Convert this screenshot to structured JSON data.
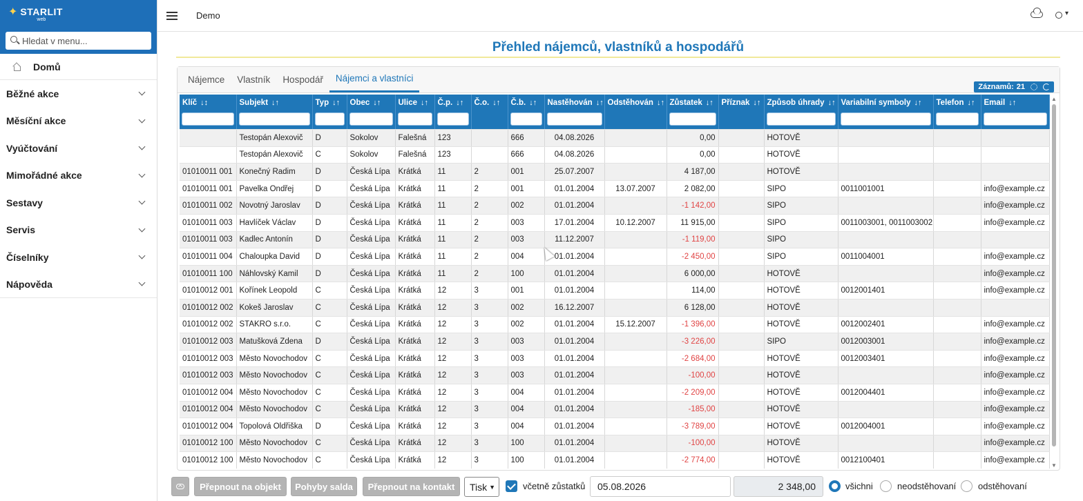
{
  "brand": {
    "name": "STARLIT",
    "sub": "web"
  },
  "sidebar": {
    "search_placeholder": "Hledat v menu...",
    "home": "Domů",
    "items": [
      "Běžné akce",
      "Měsíční akce",
      "Vyúčtování",
      "Mimořádné akce",
      "Sestavy",
      "Servis",
      "Číselníky",
      "Nápověda"
    ]
  },
  "topbar": {
    "company": "Demo"
  },
  "page": {
    "title": "Přehled nájemců, vlastníků a hospodářů"
  },
  "tabs": [
    "Nájemce",
    "Vlastník",
    "Hospodář",
    "Nájemci a vlastníci"
  ],
  "records": {
    "label": "Záznamů:",
    "count": "21"
  },
  "table": {
    "columns": [
      "Klíč",
      "Subjekt",
      "Typ",
      "Obec",
      "Ulice",
      "Č.p.",
      "Č.o.",
      "Č.b.",
      "Nastěhován",
      "Odstěhován",
      "Zůstatek",
      "Příznak",
      "Způsob úhrady",
      "Variabilní symboly",
      "Telefon",
      "Email"
    ],
    "rows": [
      [
        "",
        "Testopán Alexovič",
        "D",
        "Sokolov",
        "Falešná",
        "123",
        "",
        "666",
        "04.08.2026",
        "",
        "0,00",
        "",
        "HOTOVĚ",
        "",
        "",
        ""
      ],
      [
        "",
        "Testopán Alexovič",
        "C",
        "Sokolov",
        "Falešná",
        "123",
        "",
        "666",
        "04.08.2026",
        "",
        "0,00",
        "",
        "HOTOVĚ",
        "",
        "",
        ""
      ],
      [
        "01010011 001",
        "Konečný Radim",
        "D",
        "Česká Lípa",
        "Krátká",
        "11",
        "2",
        "001",
        "25.07.2007",
        "",
        "4 187,00",
        "",
        "HOTOVĚ",
        "",
        "",
        ""
      ],
      [
        "01010011 001",
        "Pavelka Ondřej",
        "D",
        "Česká Lípa",
        "Krátká",
        "11",
        "2",
        "001",
        "01.01.2004",
        "13.07.2007",
        "2 082,00",
        "",
        "SIPO",
        "0011001001",
        "",
        "info@example.cz"
      ],
      [
        "01010011 002",
        "Novotný Jaroslav",
        "D",
        "Česká Lípa",
        "Krátká",
        "11",
        "2",
        "002",
        "01.01.2004",
        "",
        "-1 142,00",
        "",
        "SIPO",
        "",
        "",
        "info@example.cz"
      ],
      [
        "01010011 003",
        "Havlíček Václav",
        "D",
        "Česká Lípa",
        "Krátká",
        "11",
        "2",
        "003",
        "17.01.2004",
        "10.12.2007",
        "11 915,00",
        "",
        "SIPO",
        "0011003001, 0011003002",
        "",
        "info@example.cz"
      ],
      [
        "01010011 003",
        "Kadlec Antonín",
        "D",
        "Česká Lípa",
        "Krátká",
        "11",
        "2",
        "003",
        "11.12.2007",
        "",
        "-1 119,00",
        "",
        "SIPO",
        "",
        "",
        ""
      ],
      [
        "01010011 004",
        "Chaloupka David",
        "D",
        "Česká Lípa",
        "Krátká",
        "11",
        "2",
        "004",
        "01.01.2004",
        "",
        "-2 450,00",
        "",
        "SIPO",
        "0011004001",
        "",
        "info@example.cz"
      ],
      [
        "01010011 100",
        "Náhlovský Kamil",
        "D",
        "Česká Lípa",
        "Krátká",
        "11",
        "2",
        "100",
        "01.01.2004",
        "",
        "6 000,00",
        "",
        "HOTOVĚ",
        "",
        "",
        "info@example.cz"
      ],
      [
        "01010012 001",
        "Kořínek Leopold",
        "C",
        "Česká Lípa",
        "Krátká",
        "12",
        "3",
        "001",
        "01.01.2004",
        "",
        "114,00",
        "",
        "HOTOVĚ",
        "0012001401",
        "",
        "info@example.cz"
      ],
      [
        "01010012 002",
        "Kokeš Jaroslav",
        "C",
        "Česká Lípa",
        "Krátká",
        "12",
        "3",
        "002",
        "16.12.2007",
        "",
        "6 128,00",
        "",
        "HOTOVĚ",
        "",
        "",
        ""
      ],
      [
        "01010012 002",
        "STAKRO s.r.o.",
        "C",
        "Česká Lípa",
        "Krátká",
        "12",
        "3",
        "002",
        "01.01.2004",
        "15.12.2007",
        "-1 396,00",
        "",
        "HOTOVĚ",
        "0012002401",
        "",
        "info@example.cz"
      ],
      [
        "01010012 003",
        "Matušková Zdena",
        "D",
        "Česká Lípa",
        "Krátká",
        "12",
        "3",
        "003",
        "01.01.2004",
        "",
        "-3 226,00",
        "",
        "SIPO",
        "0012003001",
        "",
        "info@example.cz"
      ],
      [
        "01010012 003",
        "Město Novochodov",
        "C",
        "Česká Lípa",
        "Krátká",
        "12",
        "3",
        "003",
        "01.01.2004",
        "",
        "-2 684,00",
        "",
        "HOTOVĚ",
        "0012003401",
        "",
        "info@example.cz"
      ],
      [
        "01010012 003",
        "Město Novochodov",
        "C",
        "Česká Lípa",
        "Krátká",
        "12",
        "3",
        "003",
        "01.01.2004",
        "",
        "-100,00",
        "",
        "HOTOVĚ",
        "",
        "",
        "info@example.cz"
      ],
      [
        "01010012 004",
        "Město Novochodov",
        "C",
        "Česká Lípa",
        "Krátká",
        "12",
        "3",
        "004",
        "01.01.2004",
        "",
        "-2 209,00",
        "",
        "HOTOVĚ",
        "0012004401",
        "",
        "info@example.cz"
      ],
      [
        "01010012 004",
        "Město Novochodov",
        "C",
        "Česká Lípa",
        "Krátká",
        "12",
        "3",
        "004",
        "01.01.2004",
        "",
        "-185,00",
        "",
        "HOTOVĚ",
        "",
        "",
        "info@example.cz"
      ],
      [
        "01010012 004",
        "Topolová Oldřiška",
        "D",
        "Česká Lípa",
        "Krátká",
        "12",
        "3",
        "004",
        "01.01.2004",
        "",
        "-3 789,00",
        "",
        "HOTOVĚ",
        "0012004001",
        "",
        "info@example.cz"
      ],
      [
        "01010012 100",
        "Město Novochodov",
        "C",
        "Česká Lípa",
        "Krátká",
        "12",
        "3",
        "100",
        "01.01.2004",
        "",
        "-100,00",
        "",
        "HOTOVĚ",
        "",
        "",
        "info@example.cz"
      ],
      [
        "01010012 100",
        "Město Novochodov",
        "C",
        "Česká Lípa",
        "Krátká",
        "12",
        "3",
        "100",
        "01.01.2004",
        "",
        "-2 774,00",
        "",
        "HOTOVĚ",
        "0012100401",
        "",
        "info@example.cz"
      ]
    ]
  },
  "bottom": {
    "btn_object": "Přepnout na objekt",
    "btn_moves": "Pohyby salda",
    "btn_contact": "Přepnout na kontakt",
    "print": "Tisk",
    "include_balances": "včetně zůstatků",
    "date": "05.08.2026",
    "amount": "2 348,00",
    "radio_all": "všichni",
    "radio_not_moved": "neodstěhovaní",
    "radio_moved": "odstěhovaní"
  },
  "colors": {
    "accent": "#1f77b8",
    "negative": "#e04343",
    "button_disabled": "#b4b4b4"
  },
  "icons": [
    "star-logo-icon",
    "search-icon",
    "home-icon",
    "chevron-down-icon",
    "menu-icon",
    "cloud-icon",
    "sun-icon",
    "gear-icon",
    "refresh-icon",
    "sort-icon",
    "upload-icon",
    "check-icon"
  ]
}
